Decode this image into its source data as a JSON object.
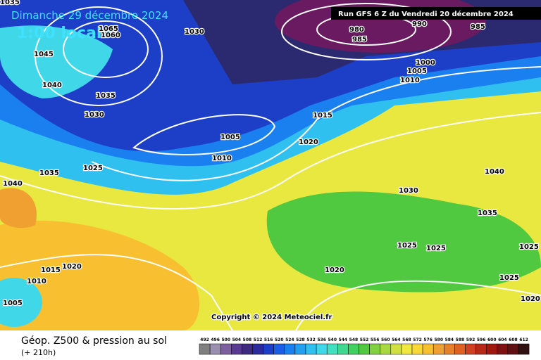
{
  "header": {
    "date": "Dimanche 29 décembre 2024",
    "time": "1:00 locale",
    "run": "Run GFS 6 Z du Vendredi 20 décembre 2024",
    "copyright": "Copyright © 2024 Meteociel.fr"
  },
  "footer": {
    "title": "Géop. Z500 & pression au sol",
    "lead": "(+ 210h)"
  },
  "isobar_labels": [
    "1035",
    "1030",
    "1045",
    "1040",
    "1065",
    "1060",
    "1035",
    "1030",
    "980",
    "985",
    "990",
    "985",
    "1000",
    "1005",
    "1010",
    "1015",
    "1005",
    "1010",
    "1020",
    "1025",
    "1035",
    "1040",
    "1040",
    "1030",
    "1035",
    "1025",
    "1025",
    "1025",
    "1020",
    "1015",
    "1020",
    "1010",
    "1005",
    "1025",
    "1020"
  ],
  "scale": {
    "labels": [
      492,
      496,
      500,
      504,
      508,
      512,
      516,
      520,
      524,
      528,
      532,
      536,
      540,
      544,
      548,
      552,
      556,
      560,
      564,
      568,
      572,
      576,
      580,
      584,
      588,
      592,
      596,
      600,
      604,
      608,
      612
    ],
    "colors": [
      "#7f7f7f",
      "#9a8fb0",
      "#7d5fa0",
      "#5a3a90",
      "#3e2a80",
      "#2b2aa0",
      "#1d3fc8",
      "#1a5ee6",
      "#1a80f0",
      "#20a0f0",
      "#30c0f0",
      "#40d8e8",
      "#40e0c0",
      "#40d890",
      "#40d060",
      "#50c840",
      "#80d040",
      "#a8d840",
      "#d0e040",
      "#f0e840",
      "#f8d838",
      "#f8c030",
      "#f0a030",
      "#e88028",
      "#e06020",
      "#d04020",
      "#b82818",
      "#a01810",
      "#801010",
      "#601010",
      "#301010"
    ]
  }
}
